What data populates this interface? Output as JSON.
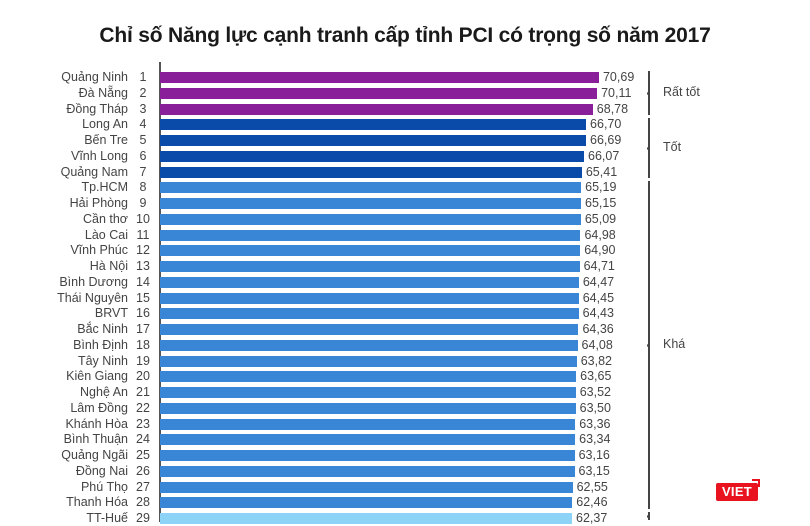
{
  "chart_data": {
    "type": "bar",
    "orientation": "horizontal",
    "title": "Chỉ số Năng lực cạnh tranh cấp tỉnh PCI có trọng số năm 2017",
    "xlabel": "",
    "ylabel": "",
    "grid": false,
    "categories": [
      "Quảng Ninh",
      "Đà Nẵng",
      "Đồng Tháp",
      "Long An",
      "Bến Tre",
      "Vĩnh Long",
      "Quảng Nam",
      "Tp.HCM",
      "Hải Phòng",
      "Cần thơ",
      "Lào Cai",
      "Vĩnh Phúc",
      "Hà Nội",
      "Bình Dương",
      "Thái Nguyên",
      "BRVT",
      "Bắc Ninh",
      "Bình Định",
      "Tây Ninh",
      "Kiên Giang",
      "Nghệ An",
      "Lâm Đồng",
      "Khánh Hòa",
      "Bình Thuận",
      "Quảng Ngãi",
      "Đồng Nai",
      "Phú Thọ",
      "Thanh Hóa",
      "TT-Huế"
    ],
    "ranks": [
      1,
      2,
      3,
      4,
      5,
      6,
      7,
      8,
      9,
      10,
      11,
      12,
      13,
      14,
      15,
      16,
      17,
      18,
      19,
      20,
      21,
      22,
      23,
      24,
      25,
      26,
      27,
      28,
      29
    ],
    "values": [
      70.69,
      70.11,
      68.78,
      66.7,
      66.69,
      66.07,
      65.41,
      65.19,
      65.15,
      65.09,
      64.98,
      64.9,
      64.71,
      64.47,
      64.45,
      64.43,
      64.36,
      64.08,
      63.82,
      63.65,
      63.52,
      63.5,
      63.36,
      63.34,
      63.16,
      63.15,
      62.55,
      62.46,
      62.37
    ],
    "value_labels": [
      "70,69",
      "70,11",
      "68,78",
      "66,70",
      "66,69",
      "66,07",
      "65,41",
      "65,19",
      "65,15",
      "65,09",
      "64,98",
      "64,90",
      "64,71",
      "64,47",
      "64,45",
      "64,43",
      "64,36",
      "64,08",
      "63,82",
      "63,65",
      "63,52",
      "63,50",
      "63,36",
      "63,34",
      "63,16",
      "63,15",
      "62,55",
      "62,46",
      "62,37"
    ],
    "groups": [
      {
        "label": "Rất tốt",
        "from_rank": 1,
        "to_rank": 3,
        "color": "#8a1f9a"
      },
      {
        "label": "Tốt",
        "from_rank": 4,
        "to_rank": 7,
        "color": "#0a4aa8"
      },
      {
        "label": "Khá",
        "from_rank": 8,
        "to_rank": 28,
        "color": "#3a86d6"
      },
      {
        "label": "",
        "from_rank": 29,
        "to_rank": 29,
        "color": "#8dd3f7"
      }
    ]
  },
  "logo": {
    "text": "VIET",
    "color": "#e8131f"
  }
}
